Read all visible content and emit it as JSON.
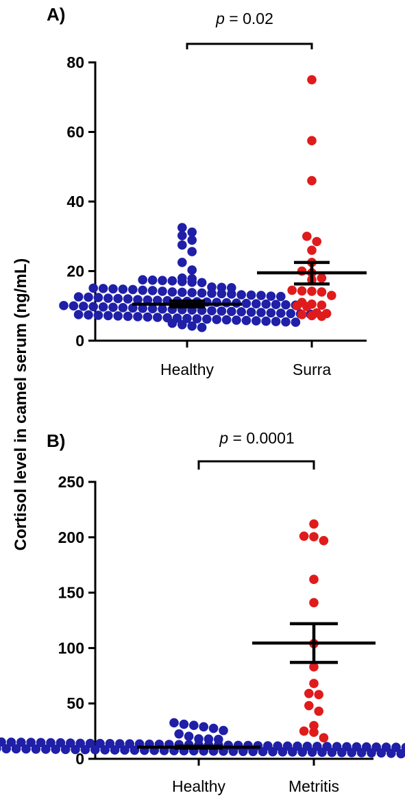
{
  "ylabel": "Cortisol level in camel serum (ng/mL)",
  "colors": {
    "healthy": "#1f1fa8",
    "disease": "#e01b1b",
    "axis": "#000000"
  },
  "chart_data": [
    {
      "panel": "A)",
      "type": "scatter",
      "ylim": [
        0,
        80
      ],
      "yticks": [
        0,
        20,
        40,
        60,
        80
      ],
      "categories": [
        "Healthy",
        "Surra"
      ],
      "p_text": {
        "p": "p",
        "rest": " = 0.02"
      },
      "groups": [
        {
          "category": "Healthy",
          "color": "#1f1fa8",
          "mean": 10.5,
          "sem_low": 9.7,
          "sem_high": 11.4,
          "values": [
            32.5,
            31.2,
            30.2,
            28.9,
            27.5,
            25.6,
            22.5,
            20.3,
            18.0,
            17.8,
            17.5,
            17.4,
            17.3,
            17.2,
            17.0,
            16.8,
            16.7,
            15.4,
            15.3,
            15.2,
            15.1,
            15.0,
            14.9,
            14.8,
            14.7,
            14.5,
            14.4,
            14.2,
            14.0,
            13.9,
            13.8,
            13.7,
            13.6,
            13.5,
            13.4,
            13.2,
            13.1,
            13.0,
            12.8,
            12.7,
            12.6,
            12.5,
            12.4,
            12.2,
            12.1,
            12.0,
            11.8,
            11.7,
            11.6,
            11.5,
            11.4,
            11.3,
            11.2,
            11.1,
            11.0,
            10.9,
            10.8,
            10.7,
            10.6,
            10.5,
            10.4,
            10.3,
            10.2,
            10.1,
            10.0,
            9.9,
            9.8,
            9.7,
            9.6,
            9.5,
            9.4,
            9.3,
            9.2,
            9.1,
            9.0,
            8.9,
            8.8,
            8.7,
            8.6,
            8.5,
            8.4,
            8.3,
            8.2,
            8.1,
            8.0,
            7.9,
            7.8,
            7.7,
            7.6,
            7.5,
            7.4,
            7.3,
            7.2,
            7.1,
            7.0,
            6.9,
            6.8,
            6.7,
            6.6,
            6.5,
            6.4,
            6.3,
            6.2,
            6.1,
            6.0,
            5.9,
            5.8,
            5.7,
            5.6,
            5.5,
            5.4,
            5.3,
            5.0,
            4.6,
            4.2,
            3.8
          ]
        },
        {
          "category": "Surra",
          "color": "#e01b1b",
          "mean": 19.5,
          "sem_low": 16.3,
          "sem_high": 22.5,
          "values": [
            75.0,
            57.5,
            46.0,
            30.0,
            28.5,
            26.0,
            22.5,
            20.0,
            19.5,
            18.0,
            17.5,
            14.5,
            14.3,
            14.2,
            14.0,
            13.0,
            11.0,
            10.5,
            10.2,
            10.0,
            9.8,
            8.0,
            7.8,
            7.5,
            7.2,
            7.0
          ]
        }
      ]
    },
    {
      "panel": "B)",
      "type": "scatter",
      "ylim": [
        0,
        250
      ],
      "yticks": [
        0,
        50,
        100,
        150,
        200,
        250
      ],
      "categories": [
        "Healthy",
        "Metritis"
      ],
      "p_text": {
        "p": "p",
        "rest": " = 0.0001"
      },
      "groups": [
        {
          "category": "Healthy",
          "color": "#1f1fa8",
          "mean": 10.5,
          "sem_low": 9.7,
          "sem_high": 11.4,
          "values": [
            32.5,
            31.2,
            30.2,
            28.9,
            27.5,
            25.6,
            22.5,
            20.3,
            18.0,
            17.8,
            17.5,
            17.4,
            17.3,
            17.2,
            17.0,
            16.8,
            16.7,
            15.4,
            15.3,
            15.2,
            15.1,
            15.0,
            14.9,
            14.8,
            14.7,
            14.5,
            14.4,
            14.2,
            14.0,
            13.9,
            13.8,
            13.7,
            13.6,
            13.5,
            13.4,
            13.2,
            13.1,
            13.0,
            12.8,
            12.7,
            12.6,
            12.5,
            12.4,
            12.2,
            12.1,
            12.0,
            11.8,
            11.7,
            11.6,
            11.5,
            11.4,
            11.3,
            11.2,
            11.1,
            11.0,
            10.9,
            10.8,
            10.7,
            10.6,
            10.5,
            10.4,
            10.3,
            10.2,
            10.1,
            10.0,
            9.9,
            9.8,
            9.7,
            9.6,
            9.5,
            9.4,
            9.3,
            9.2,
            9.1,
            9.0,
            8.9,
            8.8,
            8.7,
            8.6,
            8.5,
            8.4,
            8.3,
            8.2,
            8.1,
            8.0,
            7.9,
            7.8,
            7.7,
            7.6,
            7.5,
            7.4,
            7.3,
            7.2,
            7.1,
            7.0,
            6.9,
            6.8,
            6.7,
            6.6,
            6.5,
            6.4,
            6.3,
            6.2,
            6.1,
            6.0,
            5.9,
            5.8,
            5.7,
            5.6,
            5.5,
            5.4,
            5.3,
            5.0,
            4.6,
            4.2,
            3.8
          ]
        },
        {
          "category": "Metritis",
          "color": "#e01b1b",
          "mean": 104.5,
          "sem_low": 87.0,
          "sem_high": 122.0,
          "values": [
            212.0,
            201.0,
            200.5,
            197.0,
            162.0,
            141.0,
            104.0,
            83.0,
            68.0,
            59.0,
            58.0,
            48.0,
            43.0,
            30.0,
            25.0,
            24.0,
            19.0
          ]
        }
      ]
    }
  ]
}
